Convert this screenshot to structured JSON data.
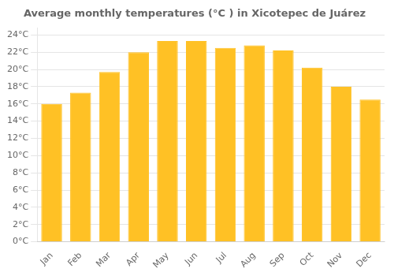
{
  "chart_data": {
    "type": "bar",
    "title": "Average monthly temperatures (°C ) in Xicotepec de Juárez",
    "categories": [
      "Jan",
      "Feb",
      "Mar",
      "Apr",
      "May",
      "Jun",
      "Jul",
      "Aug",
      "Sep",
      "Oct",
      "Nov",
      "Dec"
    ],
    "values": [
      16.0,
      17.3,
      19.7,
      22.0,
      23.3,
      23.3,
      22.5,
      22.8,
      22.2,
      20.2,
      18.0,
      16.5
    ],
    "color": "#FFC125",
    "ylim": [
      0,
      24.8
    ],
    "yticks": [
      {
        "value": 0,
        "label": "0°C"
      },
      {
        "value": 2,
        "label": "2°C"
      },
      {
        "value": 4,
        "label": "4°C"
      },
      {
        "value": 6,
        "label": "6°C"
      },
      {
        "value": 8,
        "label": "8°C"
      },
      {
        "value": 10,
        "label": "10°C"
      },
      {
        "value": 12,
        "label": "12°C"
      },
      {
        "value": 14,
        "label": "14°C"
      },
      {
        "value": 16,
        "label": "16°C"
      },
      {
        "value": 18,
        "label": "18°C"
      },
      {
        "value": 20,
        "label": "20°C"
      },
      {
        "value": 22,
        "label": "22°C"
      },
      {
        "value": 24,
        "label": "24°C"
      }
    ],
    "grid": true
  }
}
